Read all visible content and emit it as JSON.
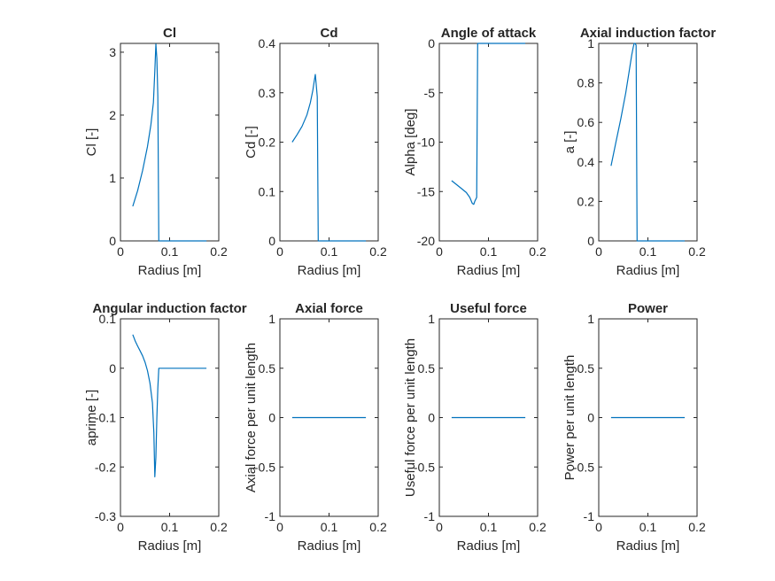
{
  "figure": {
    "background": "#ffffff",
    "line_color": "#0072bd",
    "axis_color": "#262626"
  },
  "chart_data": [
    {
      "type": "line",
      "title": "Cl",
      "xlabel": "Radius [m]",
      "ylabel": "Cl [-]",
      "xlim": [
        0,
        0.2
      ],
      "ylim": [
        0,
        3.14
      ],
      "xticks": [
        0,
        0.1,
        0.2
      ],
      "xtick_labels": [
        "0",
        "0.1",
        "0.2"
      ],
      "yticks": [
        0,
        1,
        2,
        3
      ],
      "ytick_labels": [
        "0",
        "1",
        "2",
        "3"
      ],
      "series": [
        {
          "x": [
            0.025,
            0.035,
            0.045,
            0.055,
            0.062,
            0.067,
            0.07,
            0.072,
            0.074,
            0.076,
            0.078,
            0.1,
            0.13,
            0.16,
            0.175
          ],
          "y": [
            0.55,
            0.8,
            1.12,
            1.5,
            1.85,
            2.2,
            2.7,
            3.13,
            2.9,
            2.3,
            0,
            0,
            0,
            0,
            0
          ]
        }
      ]
    },
    {
      "type": "line",
      "title": "Cd",
      "xlabel": "Radius [m]",
      "ylabel": "Cd [-]",
      "xlim": [
        0,
        0.2
      ],
      "ylim": [
        0,
        0.4
      ],
      "xticks": [
        0,
        0.1,
        0.2
      ],
      "xtick_labels": [
        "0",
        "0.1",
        "0.2"
      ],
      "yticks": [
        0,
        0.1,
        0.2,
        0.3,
        0.4
      ],
      "ytick_labels": [
        "0",
        "0.1",
        "0.2",
        "0.3",
        "0.4"
      ],
      "series": [
        {
          "x": [
            0.025,
            0.035,
            0.045,
            0.055,
            0.062,
            0.067,
            0.07,
            0.072,
            0.074,
            0.076,
            0.078,
            0.1,
            0.13,
            0.16,
            0.175
          ],
          "y": [
            0.2,
            0.215,
            0.232,
            0.255,
            0.28,
            0.305,
            0.325,
            0.337,
            0.315,
            0.292,
            0,
            0,
            0,
            0,
            0
          ]
        }
      ]
    },
    {
      "type": "line",
      "title": "Angle of attack",
      "xlabel": "Radius [m]",
      "ylabel": "Alpha [deg]",
      "xlim": [
        0,
        0.2
      ],
      "ylim": [
        -20,
        0
      ],
      "xticks": [
        0,
        0.1,
        0.2
      ],
      "xtick_labels": [
        "0",
        "0.1",
        "0.2"
      ],
      "yticks": [
        -20,
        -15,
        -10,
        -5,
        0
      ],
      "ytick_labels": [
        "-20",
        "-15",
        "-10",
        "-5",
        "0"
      ],
      "series": [
        {
          "x": [
            0.025,
            0.035,
            0.045,
            0.055,
            0.062,
            0.067,
            0.07,
            0.072,
            0.074,
            0.076,
            0.078,
            0.1,
            0.13,
            0.16,
            0.175
          ],
          "y": [
            -13.9,
            -14.3,
            -14.7,
            -15.1,
            -15.6,
            -16.2,
            -16.3,
            -16.0,
            -15.8,
            -15.6,
            0,
            0,
            0,
            0,
            0
          ]
        }
      ]
    },
    {
      "type": "line",
      "title": "Axial induction factor",
      "xlabel": "Radius [m]",
      "ylabel": "a [-]",
      "xlim": [
        0,
        0.2
      ],
      "ylim": [
        0,
        1
      ],
      "xticks": [
        0,
        0.1,
        0.2
      ],
      "xtick_labels": [
        "0",
        "0.1",
        "0.2"
      ],
      "yticks": [
        0,
        0.2,
        0.4,
        0.6,
        0.8,
        1
      ],
      "ytick_labels": [
        "0",
        "0.2",
        "0.4",
        "0.6",
        "0.8",
        "1"
      ],
      "series": [
        {
          "x": [
            0.025,
            0.035,
            0.045,
            0.055,
            0.062,
            0.067,
            0.07,
            0.072,
            0.074,
            0.076,
            0.078,
            0.1,
            0.13,
            0.16,
            0.175
          ],
          "y": [
            0.38,
            0.5,
            0.62,
            0.75,
            0.86,
            0.94,
            0.98,
            1.0,
            1.0,
            0.99,
            0,
            0,
            0,
            0,
            0
          ]
        }
      ]
    },
    {
      "type": "line",
      "title": "Angular induction factor",
      "xlabel": "Radius [m]",
      "ylabel": "aprime [-]",
      "xlim": [
        0,
        0.2
      ],
      "ylim": [
        -0.3,
        0.1
      ],
      "xticks": [
        0,
        0.1,
        0.2
      ],
      "xtick_labels": [
        "0",
        "0.1",
        "0.2"
      ],
      "yticks": [
        -0.3,
        -0.2,
        -0.1,
        0,
        0.1
      ],
      "ytick_labels": [
        "-0.3",
        "-0.2",
        "-0.1",
        "0",
        "0.1"
      ],
      "series": [
        {
          "x": [
            0.025,
            0.03,
            0.035,
            0.04,
            0.045,
            0.05,
            0.055,
            0.06,
            0.065,
            0.068,
            0.07,
            0.072,
            0.074,
            0.076,
            0.078,
            0.1,
            0.13,
            0.16,
            0.175
          ],
          "y": [
            0.068,
            0.055,
            0.045,
            0.035,
            0.025,
            0.012,
            -0.005,
            -0.03,
            -0.07,
            -0.13,
            -0.22,
            -0.18,
            -0.1,
            -0.04,
            0,
            0,
            0,
            0,
            0
          ]
        }
      ]
    },
    {
      "type": "line",
      "title": "Axial force",
      "xlabel": "Radius [m]",
      "ylabel": "Axial force per unit length",
      "xlim": [
        0,
        0.2
      ],
      "ylim": [
        -1,
        1
      ],
      "xticks": [
        0,
        0.1,
        0.2
      ],
      "xtick_labels": [
        "0",
        "0.1",
        "0.2"
      ],
      "yticks": [
        -1,
        -0.5,
        0,
        0.5,
        1
      ],
      "ytick_labels": [
        "-1",
        "-0.5",
        "0",
        "0.5",
        "1"
      ],
      "series": [
        {
          "x": [
            0.025,
            0.175
          ],
          "y": [
            0,
            0
          ]
        }
      ]
    },
    {
      "type": "line",
      "title": "Useful force",
      "xlabel": "Radius [m]",
      "ylabel": "Useful force per unit length",
      "xlim": [
        0,
        0.2
      ],
      "ylim": [
        -1,
        1
      ],
      "xticks": [
        0,
        0.1,
        0.2
      ],
      "xtick_labels": [
        "0",
        "0.1",
        "0.2"
      ],
      "yticks": [
        -1,
        -0.5,
        0,
        0.5,
        1
      ],
      "ytick_labels": [
        "-1",
        "-0.5",
        "0",
        "0.5",
        "1"
      ],
      "series": [
        {
          "x": [
            0.025,
            0.175
          ],
          "y": [
            0,
            0
          ]
        }
      ]
    },
    {
      "type": "line",
      "title": "Power",
      "xlabel": "Radius [m]",
      "ylabel": "Power per unit length",
      "xlim": [
        0,
        0.2
      ],
      "ylim": [
        -1,
        1
      ],
      "xticks": [
        0,
        0.1,
        0.2
      ],
      "xtick_labels": [
        "0",
        "0.1",
        "0.2"
      ],
      "yticks": [
        -1,
        -0.5,
        0,
        0.5,
        1
      ],
      "ytick_labels": [
        "-1",
        "-0.5",
        "0",
        "0.5",
        "1"
      ],
      "series": [
        {
          "x": [
            0.025,
            0.175
          ],
          "y": [
            0,
            0
          ]
        }
      ]
    }
  ]
}
